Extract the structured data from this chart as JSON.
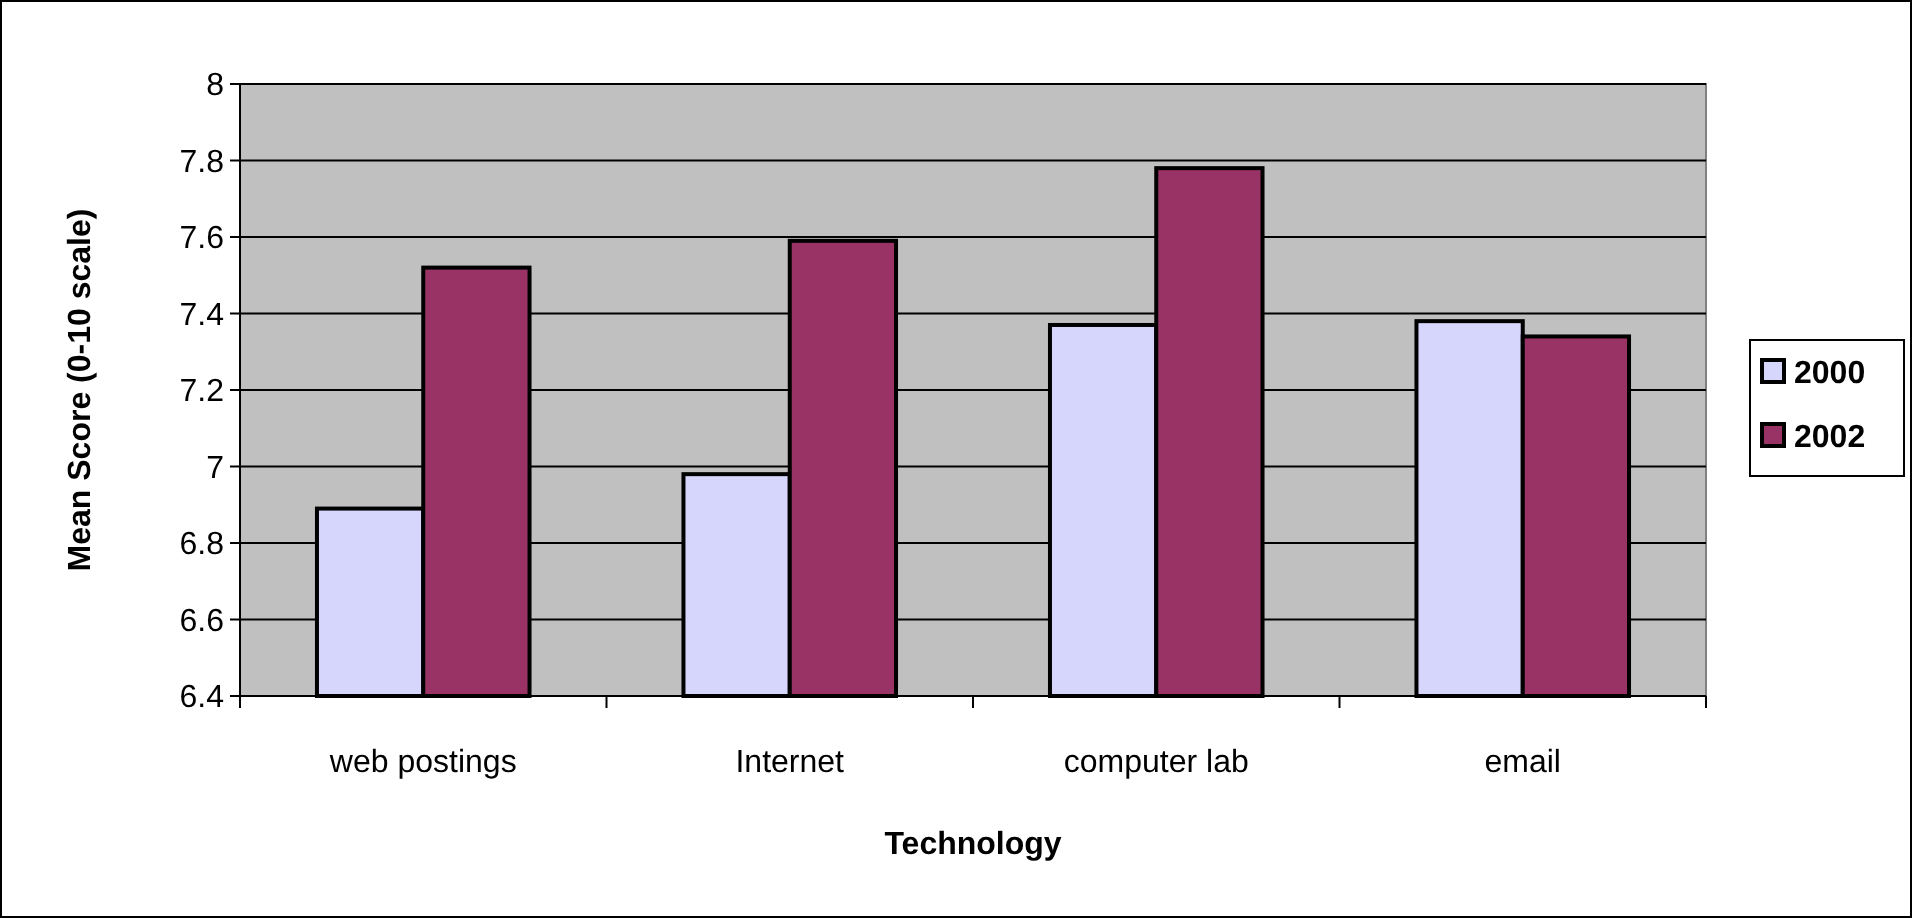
{
  "chart_data": {
    "type": "bar",
    "xlabel": "Technology",
    "ylabel": "Mean Score (0-10 scale)",
    "categories": [
      "web postings",
      "Internet",
      "computer lab",
      "email"
    ],
    "series": [
      {
        "name": "2000",
        "color": "#d6d6fc",
        "values": [
          6.89,
          6.98,
          7.37,
          7.38
        ]
      },
      {
        "name": "2002",
        "color": "#993366",
        "values": [
          7.52,
          7.59,
          7.78,
          7.34
        ]
      }
    ],
    "ylim": [
      6.4,
      8
    ],
    "yticks": [
      6.4,
      6.6,
      6.8,
      7,
      7.2,
      7.4,
      7.6,
      7.8,
      8
    ],
    "grid": "y",
    "legend": "right"
  }
}
